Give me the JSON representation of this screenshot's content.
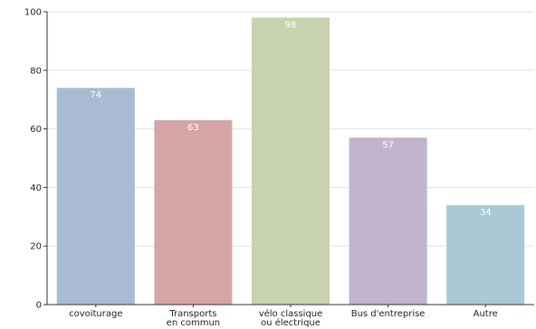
{
  "chart_data": {
    "type": "bar",
    "title": "",
    "xlabel": "",
    "ylabel": "",
    "categories": [
      [
        "covoiturage"
      ],
      [
        "Transports",
        "en commun"
      ],
      [
        "vélo classique",
        "ou électrique"
      ],
      [
        "Bus d'entreprise"
      ],
      [
        "Autre"
      ]
    ],
    "values": [
      74,
      63,
      98,
      57,
      34
    ],
    "value_labels": [
      "74",
      "63",
      "98",
      "57",
      "34"
    ],
    "colors": [
      "#a9bbd3",
      "#d4a6a7",
      "#c8d2af",
      "#c2b3ce",
      "#a9cad5"
    ],
    "ylim": [
      0,
      100
    ],
    "yticks": [
      0,
      20,
      40,
      60,
      80,
      100
    ],
    "ytick_labels": [
      "0",
      "20",
      "40",
      "60",
      "80",
      "100"
    ],
    "grid": true,
    "legend": "none"
  }
}
